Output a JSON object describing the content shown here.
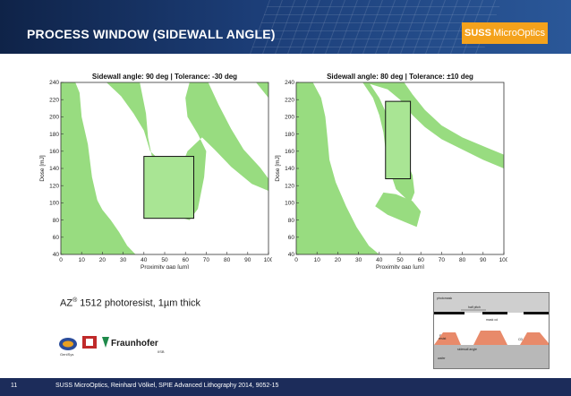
{
  "header": {
    "title": "PROCESS WINDOW (SIDEWALL ANGLE)",
    "logo_brand": "SUSS",
    "logo_name": "MicroOptics",
    "accent_color": "#f4a21c",
    "background_color": "#1c3e78"
  },
  "chart_data": [
    {
      "type": "heatmap",
      "title": "Sidewall angle: 90 deg | Tolerance: -30 deg",
      "xlabel": "Proximity gap [µm]",
      "ylabel": "Dose [mJ]",
      "xlim": [
        0,
        100
      ],
      "ylim": [
        40,
        240
      ],
      "x_ticks": [
        "0",
        "10",
        "20",
        "30",
        "40",
        "50",
        "60",
        "70",
        "80",
        "90",
        "100"
      ],
      "y_ticks": [
        "240",
        "220",
        "200",
        "180",
        "160",
        "140",
        "120",
        "100",
        "80",
        "60",
        "40"
      ],
      "fill_color": "#98dc80",
      "process_window": {
        "gap": [
          40,
          64
        ],
        "dose": [
          82,
          154
        ]
      }
    },
    {
      "type": "heatmap",
      "title": "Sidewall angle: 80 deg | Tolerance: ±10 deg",
      "xlabel": "Proximity gap [µm]",
      "ylabel": "Dose [mJ]",
      "xlim": [
        0,
        100
      ],
      "ylim": [
        40,
        240
      ],
      "x_ticks": [
        "0",
        "10",
        "20",
        "30",
        "40",
        "50",
        "60",
        "70",
        "80",
        "90",
        "100"
      ],
      "y_ticks": [
        "240",
        "220",
        "200",
        "180",
        "160",
        "140",
        "120",
        "100",
        "80",
        "60",
        "40"
      ],
      "fill_color": "#98dc80",
      "process_window": {
        "gap": [
          43,
          55
        ],
        "dose": [
          128,
          218
        ]
      }
    }
  ],
  "caption": {
    "brand": "AZ",
    "reg": "®",
    "rest": " 1512 photoresist, 1µm thick"
  },
  "partner": {
    "name": "Fraunhofer",
    "sub": "IISB",
    "left_name": "GenISys"
  },
  "schematic": {
    "photomask": "photomask",
    "half_pitch": "half pitch",
    "mask_cd": "mask cd",
    "resist": "resist",
    "cd": "CD",
    "sidewall": "sidewall angle",
    "wafer": "wafer",
    "gap": "gap"
  },
  "footer": {
    "page": "11",
    "note": "SUSS MicroOptics, Reinhard Völkel, SPIE Advanced Lithography 2014, 9052-15"
  }
}
